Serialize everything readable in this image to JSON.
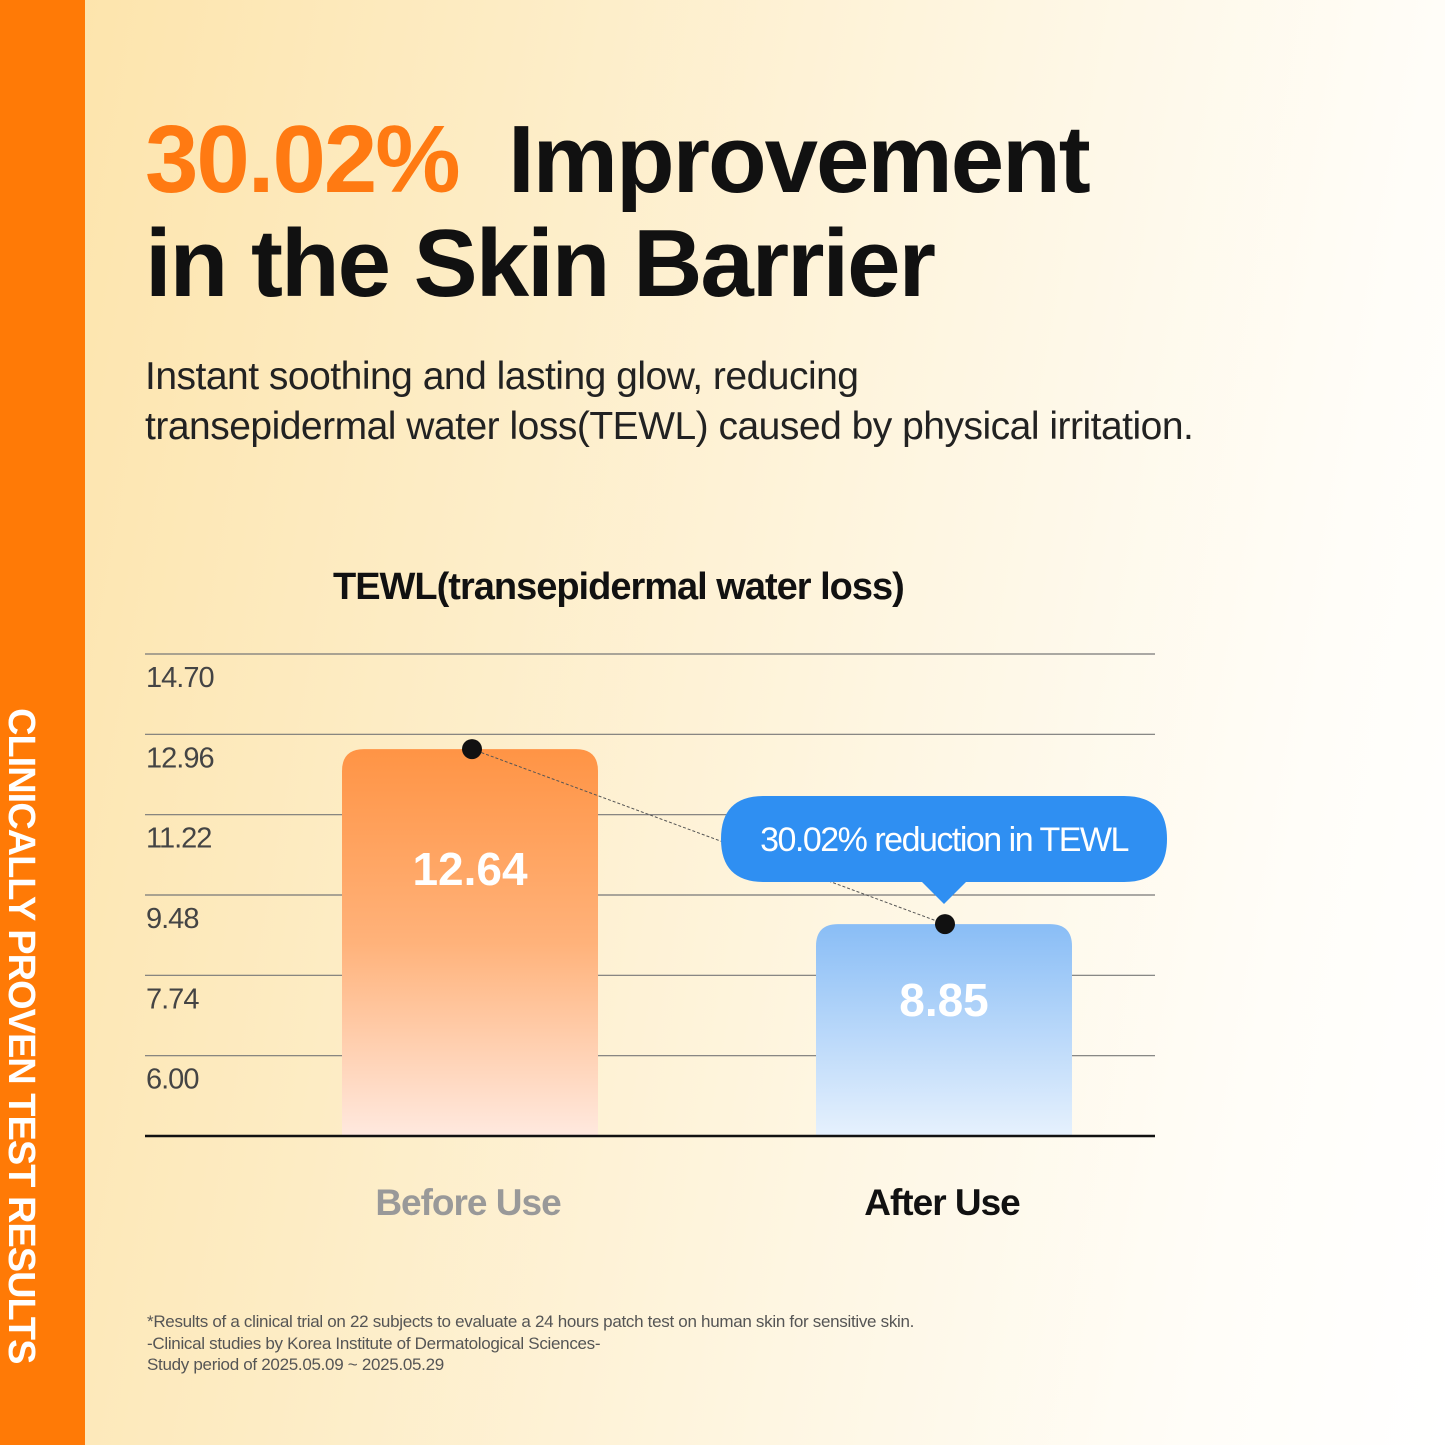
{
  "side_label": "CLINICALLY PROVEN TEST RESULTS",
  "headline": {
    "highlight": "30.02%",
    "rest_line1": "Improvement",
    "line2": "in the Skin Barrier"
  },
  "subtitle": [
    "Instant soothing and lasting glow, reducing",
    "transepidermal water loss(TEWL) caused by physical irritation."
  ],
  "colors": {
    "accent": "#ff7a06",
    "before_bar": "#ff9a50",
    "after_bar": "#8cc0f7",
    "callout": "#2f8ff2"
  },
  "chart_data": {
    "type": "bar",
    "title": "TEWL(transepidermal water loss)",
    "categories": [
      "Before Use",
      "After Use"
    ],
    "values": [
      12.64,
      8.85
    ],
    "value_labels": [
      "12.64",
      "8.85"
    ],
    "y_ticks": [
      "14.70",
      "12.96",
      "11.22",
      "9.48",
      "7.74",
      "6.00"
    ],
    "ylim": [
      4.26,
      14.7
    ],
    "grid": true,
    "annotation": "30.02% reduction in TEWL"
  },
  "footnote": [
    "*Results of a clinical trial on 22 subjects to evaluate a 24 hours patch test on human skin for sensitive skin.",
    "-Clinical studies by Korea Institute of Dermatological Sciences-",
    "Study period of 2025.05.09 ~ 2025.05.29"
  ]
}
